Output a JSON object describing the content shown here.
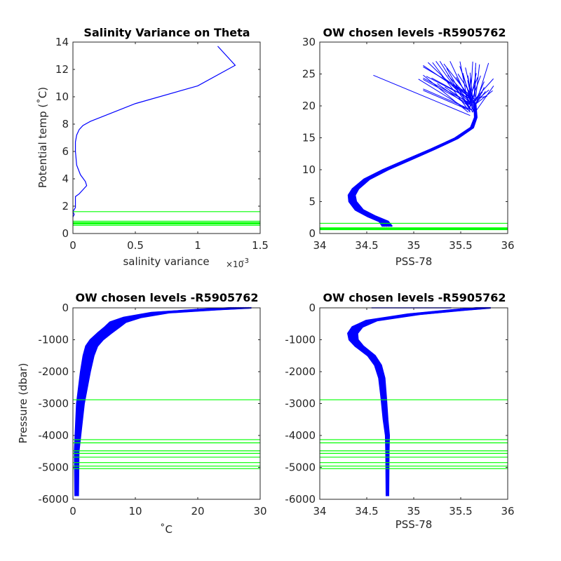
{
  "colors": {
    "profile": "#0000ff",
    "level_line": "#00ff00",
    "axis": "#262626"
  },
  "chart_data": [
    {
      "type": "line",
      "title": "Salinity Variance on Theta",
      "xlabel": "salinity variance",
      "x_exponent_base": "×10",
      "x_exponent_power": "-3",
      "ylabel": "Potential temp (˚C)",
      "xlim": [
        0,
        1.5
      ],
      "ylim": [
        0,
        14
      ],
      "xticks": [
        0,
        0.5,
        1,
        1.5
      ],
      "xtick_labels": [
        "0",
        "0.5",
        "1",
        "1.5"
      ],
      "yticks": [
        0,
        2,
        4,
        6,
        8,
        10,
        12,
        14
      ],
      "ytick_labels": [
        "0",
        "2",
        "4",
        "6",
        "8",
        "10",
        "12",
        "14"
      ],
      "grid": false,
      "series": [
        {
          "values_x": [
            0.0,
            0.01,
            0.0,
            0.02,
            0.02,
            0.05,
            0.08,
            0.11,
            0.1,
            0.06,
            0.03,
            0.02,
            0.02,
            0.03,
            0.05,
            0.08,
            0.14,
            0.25,
            0.5,
            1.0,
            1.3,
            1.16
          ],
          "values_y": [
            1.2,
            1.4,
            1.6,
            1.9,
            2.7,
            2.9,
            3.2,
            3.5,
            3.8,
            4.3,
            5.0,
            6.0,
            6.7,
            7.2,
            7.6,
            7.9,
            8.2,
            8.6,
            9.5,
            10.8,
            12.3,
            13.7
          ]
        }
      ],
      "horizontal_levels": [
        0.6,
        0.7,
        0.75,
        0.8,
        0.9,
        1.6
      ]
    },
    {
      "type": "line",
      "title": "OW chosen levels -R5905762",
      "xlabel": "PSS-78",
      "ylabel": "",
      "xlim": [
        34,
        36
      ],
      "ylim": [
        0,
        30
      ],
      "xticks": [
        34,
        34.5,
        35,
        35.5,
        36
      ],
      "xtick_labels": [
        "34",
        "34.5",
        "35",
        "35.5",
        "36"
      ],
      "yticks": [
        0,
        5,
        10,
        15,
        20,
        25,
        30
      ],
      "ytick_labels": [
        "0",
        "5",
        "10",
        "15",
        "20",
        "25",
        "30"
      ],
      "grid": false,
      "profile_band": {
        "values_x": [
          34.72,
          34.68,
          34.55,
          34.42,
          34.35,
          34.34,
          34.38,
          34.5,
          34.7,
          34.95,
          35.2,
          35.45,
          35.62,
          35.66,
          35.65
        ],
        "values_y": [
          1.1,
          1.9,
          2.7,
          3.7,
          5.0,
          6.0,
          7.0,
          8.5,
          10.0,
          11.6,
          13.2,
          14.9,
          16.6,
          18.2,
          20.5
        ],
        "spread": 0.05
      },
      "surface_spikes": [
        [
          [
            35.6,
            19.0
          ],
          [
            35.2,
            26.8
          ]
        ],
        [
          [
            35.6,
            19.5
          ],
          [
            35.35,
            25.9
          ]
        ],
        [
          [
            35.65,
            20.0
          ],
          [
            35.7,
            26.5
          ]
        ],
        [
          [
            35.6,
            18.5
          ],
          [
            34.57,
            24.8
          ]
        ],
        [
          [
            35.62,
            20.5
          ],
          [
            35.45,
            24.5
          ]
        ],
        [
          [
            35.68,
            21.0
          ],
          [
            35.8,
            22.5
          ]
        ],
        [
          [
            35.6,
            19.8
          ],
          [
            35.25,
            23.5
          ]
        ],
        [
          [
            35.64,
            20.2
          ],
          [
            35.55,
            26.0
          ]
        ],
        [
          [
            35.66,
            20.8
          ],
          [
            35.75,
            23.8
          ]
        ],
        [
          [
            35.6,
            19.2
          ],
          [
            35.05,
            24.2
          ]
        ],
        [
          [
            35.63,
            20.6
          ],
          [
            35.6,
            25.2
          ]
        ],
        [
          [
            35.65,
            21.2
          ],
          [
            35.78,
            21.5
          ]
        ]
      ],
      "horizontal_levels": [
        0.6,
        0.7,
        0.75,
        0.8,
        0.9,
        1.6
      ]
    },
    {
      "type": "line",
      "title": "OW chosen levels -R5905762",
      "xlabel": "˚C",
      "ylabel": "Pressure (dbar)",
      "xlim": [
        0,
        30
      ],
      "ylim": [
        -6000,
        0
      ],
      "xticks": [
        0,
        10,
        20,
        30
      ],
      "xtick_labels": [
        "0",
        "10",
        "20",
        "30"
      ],
      "yticks": [
        -6000,
        -5000,
        -4000,
        -3000,
        -2000,
        -1000,
        0
      ],
      "ytick_labels": [
        "-6000",
        "-5000",
        "-4000",
        "-3000",
        "-2000",
        "-1000",
        "0"
      ],
      "grid": false,
      "profile_band": {
        "values_x": [
          27.0,
          22.0,
          14.0,
          9.5,
          7.2,
          6.3,
          5.0,
          3.8,
          3.0,
          2.5,
          2.0,
          1.6,
          1.2,
          1.0,
          0.8,
          0.6,
          0.6
        ],
        "values_y": [
          0,
          -50,
          -150,
          -300,
          -450,
          -600,
          -800,
          -1000,
          -1200,
          -1500,
          -2000,
          -2500,
          -3000,
          -3500,
          -4000,
          -4500,
          -5900
        ],
        "spread": 1.6
      },
      "horizontal_levels": [
        -2880,
        -4130,
        -4230,
        -4480,
        -4560,
        -4680,
        -4850,
        -4960,
        -5040
      ]
    },
    {
      "type": "line",
      "title": "OW chosen levels -R5905762",
      "xlabel": "PSS-78",
      "ylabel": "",
      "xlim": [
        34,
        36
      ],
      "ylim": [
        -6000,
        0
      ],
      "xticks": [
        34,
        34.5,
        35,
        35.5,
        36
      ],
      "xtick_labels": [
        "34",
        "34.5",
        "35",
        "35.5",
        "36"
      ],
      "yticks": [
        -6000,
        -5000,
        -4000,
        -3000,
        -2000,
        -1000,
        0
      ],
      "ytick_labels": [
        "-6000",
        "-5000",
        "-4000",
        "-3000",
        "-2000",
        "-1000",
        "0"
      ],
      "grid": false,
      "profile_band": {
        "values_x": [
          35.75,
          35.5,
          35.0,
          34.55,
          34.4,
          34.35,
          34.36,
          34.42,
          34.55,
          34.62,
          34.66,
          34.68,
          34.7,
          34.72,
          34.72,
          34.72
        ],
        "values_y": [
          0,
          -60,
          -200,
          -400,
          -600,
          -800,
          -1000,
          -1200,
          -1500,
          -1800,
          -2200,
          -2800,
          -3500,
          -4000,
          -4500,
          -5900
        ],
        "spread": 0.07
      },
      "surface_segment": [
        [
          34.55,
          0
        ],
        [
          35.4,
          0
        ]
      ],
      "horizontal_levels": [
        -2880,
        -4130,
        -4230,
        -4480,
        -4560,
        -4680,
        -4850,
        -4960,
        -5040
      ]
    }
  ]
}
